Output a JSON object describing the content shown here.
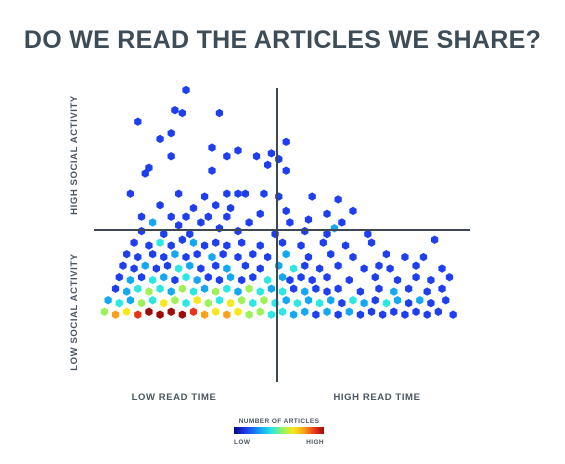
{
  "title": "DO WE READ THE ARTICLES WE SHARE?",
  "chart_data": {
    "type": "heatmap",
    "subtype": "hexbin",
    "title": "DO WE READ THE ARTICLES WE SHARE?",
    "x_labels": [
      "LOW READ TIME",
      "HIGH READ TIME"
    ],
    "y_labels": [
      "LOW SOCIAL ACTIVITY",
      "HIGH SOCIAL ACTIVITY"
    ],
    "quadrant_dividers": true,
    "legend": {
      "title": "NUMBER OF ARTICLES",
      "low": "LOW",
      "high": "HIGH",
      "colors": [
        "#08068c",
        "#1d3ff0",
        "#14a8f2",
        "#2be8e2",
        "#9df25a",
        "#f8e71c",
        "#f7a21a",
        "#e8351a",
        "#9e0b0b"
      ],
      "placement": "bottom-center"
    },
    "points_note": "Each point: [read_time 0-100, social_activity 0-100, density level 0-8]",
    "points": [
      [
        24,
        100,
        1
      ],
      [
        21,
        93,
        1
      ],
      [
        11,
        89,
        1
      ],
      [
        23,
        92,
        1
      ],
      [
        33,
        92,
        1
      ],
      [
        20,
        85,
        1
      ],
      [
        17,
        83,
        1
      ],
      [
        51,
        82,
        1
      ],
      [
        31,
        80,
        1
      ],
      [
        38,
        79,
        1
      ],
      [
        47,
        78,
        1
      ],
      [
        20,
        77,
        1
      ],
      [
        43,
        77,
        1
      ],
      [
        35,
        77,
        1
      ],
      [
        49,
        76,
        1
      ],
      [
        14,
        73,
        1
      ],
      [
        13,
        71,
        1
      ],
      [
        31,
        72,
        1
      ],
      [
        46,
        74,
        1
      ],
      [
        51,
        72,
        1
      ],
      [
        9,
        64,
        1
      ],
      [
        22,
        64,
        1
      ],
      [
        29,
        63,
        1
      ],
      [
        35,
        64,
        1
      ],
      [
        38,
        64,
        1
      ],
      [
        40,
        64,
        1
      ],
      [
        45,
        64,
        1
      ],
      [
        49,
        63,
        1
      ],
      [
        58,
        63,
        1
      ],
      [
        65,
        62,
        1
      ],
      [
        17,
        60,
        1
      ],
      [
        26,
        59,
        1
      ],
      [
        32,
        60,
        1
      ],
      [
        36,
        59,
        1
      ],
      [
        12,
        56,
        1
      ],
      [
        20,
        56,
        1
      ],
      [
        24,
        56,
        1
      ],
      [
        30,
        56,
        1
      ],
      [
        35,
        56,
        1
      ],
      [
        44,
        57,
        1
      ],
      [
        51,
        58,
        1
      ],
      [
        62,
        57,
        1
      ],
      [
        69,
        58,
        1
      ],
      [
        15,
        54,
        2
      ],
      [
        22,
        53,
        1
      ],
      [
        28,
        54,
        1
      ],
      [
        41,
        54,
        1
      ],
      [
        52,
        54,
        1
      ],
      [
        57,
        55,
        1
      ],
      [
        66,
        54,
        1
      ],
      [
        12,
        51,
        1
      ],
      [
        18,
        50,
        1
      ],
      [
        25,
        50,
        1
      ],
      [
        33,
        52,
        1
      ],
      [
        38,
        51,
        1
      ],
      [
        48,
        50,
        1
      ],
      [
        56,
        51,
        1
      ],
      [
        62,
        50,
        1
      ],
      [
        73,
        50,
        1
      ],
      [
        64,
        52,
        2
      ],
      [
        91,
        48,
        1
      ],
      [
        10,
        47,
        1
      ],
      [
        14,
        46,
        1
      ],
      [
        17,
        47,
        3
      ],
      [
        20,
        46,
        1
      ],
      [
        23,
        48,
        1
      ],
      [
        26,
        47,
        2
      ],
      [
        29,
        46,
        1
      ],
      [
        32,
        47,
        1
      ],
      [
        35,
        46,
        1
      ],
      [
        39,
        47,
        1
      ],
      [
        44,
        46,
        1
      ],
      [
        50,
        47,
        1
      ],
      [
        55,
        46,
        1
      ],
      [
        61,
        47,
        1
      ],
      [
        67,
        46,
        1
      ],
      [
        74,
        47,
        1
      ],
      [
        8,
        43,
        1
      ],
      [
        11,
        42,
        1
      ],
      [
        15,
        43,
        1
      ],
      [
        18,
        42,
        1
      ],
      [
        21,
        43,
        2
      ],
      [
        24,
        42,
        1
      ],
      [
        27,
        43,
        1
      ],
      [
        31,
        42,
        2
      ],
      [
        34,
        43,
        1
      ],
      [
        38,
        42,
        1
      ],
      [
        42,
        43,
        1
      ],
      [
        46,
        42,
        1
      ],
      [
        51,
        43,
        2
      ],
      [
        57,
        42,
        1
      ],
      [
        63,
        43,
        1
      ],
      [
        69,
        42,
        1
      ],
      [
        78,
        43,
        1
      ],
      [
        83,
        42,
        1
      ],
      [
        88,
        42,
        1
      ],
      [
        7,
        39,
        1
      ],
      [
        10,
        38,
        1
      ],
      [
        13,
        39,
        2
      ],
      [
        16,
        38,
        1
      ],
      [
        19,
        39,
        1
      ],
      [
        22,
        38,
        3
      ],
      [
        25,
        39,
        2
      ],
      [
        28,
        38,
        1
      ],
      [
        32,
        39,
        1
      ],
      [
        35,
        38,
        2
      ],
      [
        40,
        39,
        1
      ],
      [
        44,
        38,
        1
      ],
      [
        49,
        39,
        2
      ],
      [
        53,
        38,
        3
      ],
      [
        56,
        39,
        1
      ],
      [
        60,
        38,
        1
      ],
      [
        65,
        39,
        1
      ],
      [
        72,
        38,
        1
      ],
      [
        76,
        39,
        1
      ],
      [
        79,
        38,
        1
      ],
      [
        86,
        39,
        1
      ],
      [
        93,
        38,
        1
      ],
      [
        6,
        35,
        1
      ],
      [
        9,
        34,
        2
      ],
      [
        12,
        35,
        1
      ],
      [
        15,
        34,
        3
      ],
      [
        18,
        35,
        2
      ],
      [
        21,
        34,
        1
      ],
      [
        24,
        35,
        3
      ],
      [
        27,
        34,
        2
      ],
      [
        30,
        35,
        1
      ],
      [
        33,
        34,
        1
      ],
      [
        36,
        35,
        2
      ],
      [
        39,
        34,
        1
      ],
      [
        42,
        35,
        1
      ],
      [
        46,
        34,
        3
      ],
      [
        50,
        35,
        2
      ],
      [
        52,
        34,
        1
      ],
      [
        55,
        35,
        1
      ],
      [
        58,
        34,
        1
      ],
      [
        62,
        35,
        1
      ],
      [
        68,
        34,
        1
      ],
      [
        75,
        35,
        1
      ],
      [
        81,
        34,
        1
      ],
      [
        86,
        35,
        1
      ],
      [
        90,
        34,
        1
      ],
      [
        95,
        35,
        1
      ],
      [
        5,
        31,
        1
      ],
      [
        8,
        30,
        2
      ],
      [
        11,
        31,
        3
      ],
      [
        14,
        30,
        4
      ],
      [
        17,
        31,
        3
      ],
      [
        20,
        30,
        2
      ],
      [
        23,
        31,
        4
      ],
      [
        26,
        30,
        3
      ],
      [
        29,
        31,
        2
      ],
      [
        32,
        30,
        4
      ],
      [
        35,
        31,
        3
      ],
      [
        38,
        30,
        2
      ],
      [
        41,
        31,
        4
      ],
      [
        44,
        30,
        3
      ],
      [
        47,
        31,
        2
      ],
      [
        50,
        30,
        3
      ],
      [
        53,
        31,
        1
      ],
      [
        56,
        30,
        2
      ],
      [
        59,
        31,
        1
      ],
      [
        62,
        30,
        1
      ],
      [
        65,
        31,
        1
      ],
      [
        71,
        30,
        1
      ],
      [
        76,
        31,
        1
      ],
      [
        80,
        30,
        2
      ],
      [
        84,
        31,
        1
      ],
      [
        89,
        30,
        1
      ],
      [
        93,
        31,
        1
      ],
      [
        3,
        27,
        2
      ],
      [
        6,
        26,
        3
      ],
      [
        9,
        27,
        2
      ],
      [
        12,
        26,
        4
      ],
      [
        15,
        27,
        3
      ],
      [
        18,
        26,
        5
      ],
      [
        21,
        27,
        4
      ],
      [
        24,
        26,
        3
      ],
      [
        27,
        27,
        5
      ],
      [
        30,
        26,
        4
      ],
      [
        33,
        27,
        3
      ],
      [
        36,
        26,
        5
      ],
      [
        39,
        27,
        4
      ],
      [
        42,
        26,
        3
      ],
      [
        45,
        27,
        4
      ],
      [
        48,
        26,
        3
      ],
      [
        51,
        27,
        2
      ],
      [
        54,
        26,
        3
      ],
      [
        57,
        27,
        2
      ],
      [
        60,
        26,
        3
      ],
      [
        63,
        27,
        2
      ],
      [
        66,
        26,
        1
      ],
      [
        69,
        27,
        3
      ],
      [
        72,
        26,
        2
      ],
      [
        75,
        27,
        1
      ],
      [
        78,
        26,
        3
      ],
      [
        81,
        27,
        2
      ],
      [
        84,
        26,
        1
      ],
      [
        87,
        27,
        2
      ],
      [
        90,
        26,
        1
      ],
      [
        94,
        27,
        1
      ],
      [
        2,
        23,
        4
      ],
      [
        5,
        22,
        6
      ],
      [
        8,
        23,
        5
      ],
      [
        11,
        22,
        7
      ],
      [
        14,
        23,
        8
      ],
      [
        17,
        22,
        8
      ],
      [
        20,
        23,
        8
      ],
      [
        23,
        22,
        8
      ],
      [
        26,
        23,
        7
      ],
      [
        29,
        22,
        6
      ],
      [
        32,
        23,
        5
      ],
      [
        35,
        22,
        6
      ],
      [
        38,
        23,
        5
      ],
      [
        41,
        22,
        4
      ],
      [
        44,
        23,
        4
      ],
      [
        47,
        22,
        3
      ],
      [
        50,
        23,
        3
      ],
      [
        53,
        22,
        2
      ],
      [
        56,
        23,
        2
      ],
      [
        59,
        22,
        1
      ],
      [
        62,
        23,
        2
      ],
      [
        65,
        22,
        1
      ],
      [
        68,
        23,
        2
      ],
      [
        71,
        22,
        1
      ],
      [
        74,
        23,
        1
      ],
      [
        77,
        22,
        1
      ],
      [
        80,
        23,
        1
      ],
      [
        83,
        22,
        1
      ],
      [
        86,
        23,
        1
      ],
      [
        89,
        22,
        1
      ],
      [
        92,
        23,
        1
      ],
      [
        96,
        22,
        1
      ]
    ]
  }
}
